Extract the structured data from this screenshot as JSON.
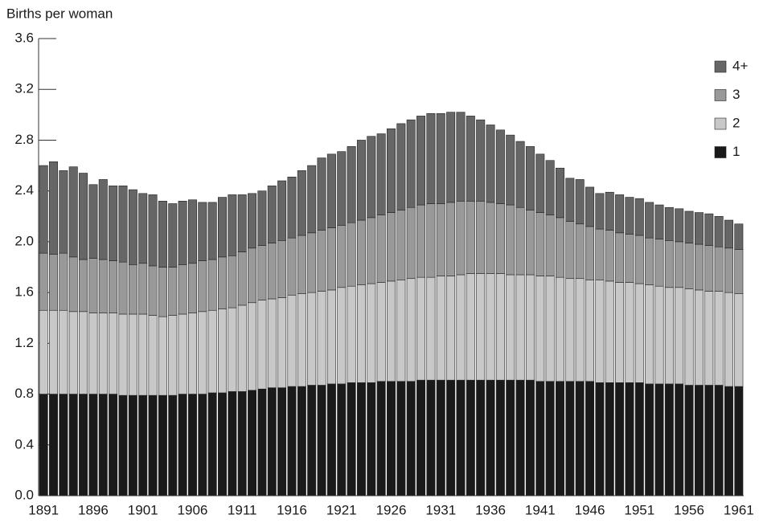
{
  "chart_data": {
    "type": "stacked_bar",
    "y_axis_label": "Births per woman",
    "categories": [
      "1891",
      null,
      null,
      null,
      null,
      "1896",
      null,
      null,
      null,
      null,
      "1901",
      null,
      null,
      null,
      null,
      "1906",
      null,
      null,
      null,
      null,
      "1911",
      null,
      null,
      null,
      null,
      "1916",
      null,
      null,
      null,
      null,
      "1921",
      null,
      null,
      null,
      null,
      "1926",
      null,
      null,
      null,
      null,
      "1931",
      null,
      null,
      null,
      null,
      "1936",
      null,
      null,
      null,
      null,
      "1941",
      null,
      null,
      null,
      null,
      "1946",
      null,
      null,
      null,
      null,
      "1951",
      null,
      null,
      null,
      null,
      "1956",
      null,
      null,
      null,
      null,
      "1961"
    ],
    "series": [
      {
        "name": "1",
        "color": "#1a1a1a",
        "values": [
          0.8,
          0.8,
          0.8,
          0.8,
          0.8,
          0.8,
          0.8,
          0.8,
          0.79,
          0.79,
          0.79,
          0.79,
          0.79,
          0.79,
          0.8,
          0.8,
          0.8,
          0.81,
          0.81,
          0.82,
          0.82,
          0.83,
          0.84,
          0.85,
          0.85,
          0.86,
          0.86,
          0.87,
          0.87,
          0.88,
          0.88,
          0.89,
          0.89,
          0.89,
          0.9,
          0.9,
          0.9,
          0.9,
          0.91,
          0.91,
          0.91,
          0.91,
          0.91,
          0.91,
          0.91,
          0.91,
          0.91,
          0.91,
          0.91,
          0.91,
          0.9,
          0.9,
          0.9,
          0.9,
          0.9,
          0.9,
          0.89,
          0.89,
          0.89,
          0.89,
          0.89,
          0.88,
          0.88,
          0.88,
          0.88,
          0.87,
          0.87,
          0.87,
          0.87,
          0.86,
          0.86
        ]
      },
      {
        "name": "2",
        "color": "#c8c8c8",
        "values": [
          0.66,
          0.66,
          0.66,
          0.65,
          0.65,
          0.64,
          0.64,
          0.64,
          0.64,
          0.64,
          0.64,
          0.63,
          0.62,
          0.63,
          0.63,
          0.64,
          0.65,
          0.65,
          0.66,
          0.66,
          0.68,
          0.69,
          0.7,
          0.7,
          0.71,
          0.72,
          0.73,
          0.73,
          0.74,
          0.74,
          0.76,
          0.76,
          0.77,
          0.78,
          0.78,
          0.79,
          0.8,
          0.81,
          0.81,
          0.81,
          0.82,
          0.82,
          0.83,
          0.84,
          0.84,
          0.84,
          0.84,
          0.83,
          0.83,
          0.83,
          0.83,
          0.83,
          0.82,
          0.81,
          0.81,
          0.8,
          0.81,
          0.8,
          0.79,
          0.79,
          0.78,
          0.78,
          0.77,
          0.76,
          0.76,
          0.76,
          0.75,
          0.74,
          0.74,
          0.74,
          0.73
        ]
      },
      {
        "name": "3",
        "color": "#999999",
        "values": [
          0.45,
          0.44,
          0.45,
          0.43,
          0.41,
          0.43,
          0.42,
          0.41,
          0.41,
          0.39,
          0.4,
          0.39,
          0.39,
          0.38,
          0.39,
          0.39,
          0.4,
          0.4,
          0.41,
          0.41,
          0.42,
          0.43,
          0.43,
          0.44,
          0.45,
          0.45,
          0.46,
          0.47,
          0.48,
          0.49,
          0.49,
          0.5,
          0.51,
          0.52,
          0.53,
          0.54,
          0.55,
          0.56,
          0.57,
          0.58,
          0.57,
          0.58,
          0.58,
          0.57,
          0.57,
          0.56,
          0.55,
          0.55,
          0.53,
          0.51,
          0.5,
          0.48,
          0.47,
          0.45,
          0.43,
          0.42,
          0.4,
          0.4,
          0.39,
          0.38,
          0.38,
          0.37,
          0.37,
          0.37,
          0.36,
          0.36,
          0.36,
          0.36,
          0.35,
          0.35,
          0.35
        ]
      },
      {
        "name": "4+",
        "color": "#666666",
        "values": [
          0.69,
          0.73,
          0.65,
          0.71,
          0.68,
          0.58,
          0.63,
          0.59,
          0.6,
          0.59,
          0.55,
          0.56,
          0.52,
          0.5,
          0.5,
          0.5,
          0.46,
          0.45,
          0.47,
          0.48,
          0.45,
          0.43,
          0.43,
          0.45,
          0.47,
          0.48,
          0.51,
          0.53,
          0.57,
          0.58,
          0.58,
          0.6,
          0.63,
          0.64,
          0.64,
          0.66,
          0.68,
          0.69,
          0.7,
          0.71,
          0.71,
          0.71,
          0.7,
          0.67,
          0.64,
          0.61,
          0.58,
          0.55,
          0.52,
          0.5,
          0.46,
          0.43,
          0.39,
          0.34,
          0.35,
          0.31,
          0.28,
          0.3,
          0.3,
          0.29,
          0.29,
          0.28,
          0.27,
          0.26,
          0.26,
          0.25,
          0.25,
          0.25,
          0.24,
          0.22,
          0.2
        ]
      }
    ],
    "ylim": [
      0,
      3.6
    ],
    "yticks": [
      {
        "value": 0,
        "label": "0.0"
      },
      0.4,
      0.8,
      1.2,
      1.6,
      {
        "value": 2,
        "label": "2.0"
      },
      2.4,
      2.8,
      3.2,
      3.6
    ],
    "grid": false,
    "legend": "top-right"
  }
}
